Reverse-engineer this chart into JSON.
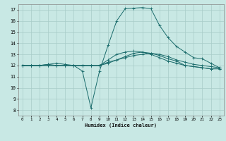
{
  "xlabel": "Humidex (Indice chaleur)",
  "xlim": [
    -0.5,
    23.5
  ],
  "ylim": [
    7.5,
    17.5
  ],
  "xticks": [
    0,
    1,
    2,
    3,
    4,
    5,
    6,
    7,
    8,
    9,
    10,
    11,
    12,
    13,
    14,
    15,
    16,
    17,
    18,
    19,
    20,
    21,
    22,
    23
  ],
  "yticks": [
    8,
    9,
    10,
    11,
    12,
    13,
    14,
    15,
    16,
    17
  ],
  "bg_color": "#c8e8e4",
  "grid_color": "#a8ccc8",
  "line_color": "#1a6b6b",
  "lines": [
    [
      12.0,
      12.0,
      12.0,
      12.1,
      12.0,
      12.0,
      12.0,
      11.5,
      8.2,
      11.5,
      13.8,
      16.0,
      17.1,
      17.15,
      17.2,
      17.1,
      15.6,
      14.5,
      13.7,
      13.2,
      12.7,
      12.6,
      12.2,
      11.8
    ],
    [
      12.0,
      12.0,
      12.0,
      12.1,
      12.2,
      12.1,
      12.0,
      12.0,
      12.0,
      12.0,
      12.5,
      13.0,
      13.2,
      13.3,
      13.2,
      13.0,
      12.7,
      12.4,
      12.2,
      12.0,
      11.9,
      11.8,
      11.7,
      11.7
    ],
    [
      12.0,
      12.0,
      12.0,
      12.0,
      12.0,
      12.0,
      12.0,
      12.0,
      12.0,
      12.0,
      12.2,
      12.5,
      12.8,
      13.1,
      13.2,
      13.1,
      12.9,
      12.6,
      12.4,
      12.0,
      11.9,
      11.8,
      11.7,
      11.7
    ],
    [
      12.0,
      12.0,
      12.0,
      12.0,
      12.0,
      12.0,
      12.0,
      12.0,
      12.0,
      12.0,
      12.3,
      12.5,
      12.7,
      12.9,
      13.0,
      13.1,
      13.0,
      12.8,
      12.5,
      12.3,
      12.1,
      12.0,
      11.9,
      11.8
    ]
  ]
}
